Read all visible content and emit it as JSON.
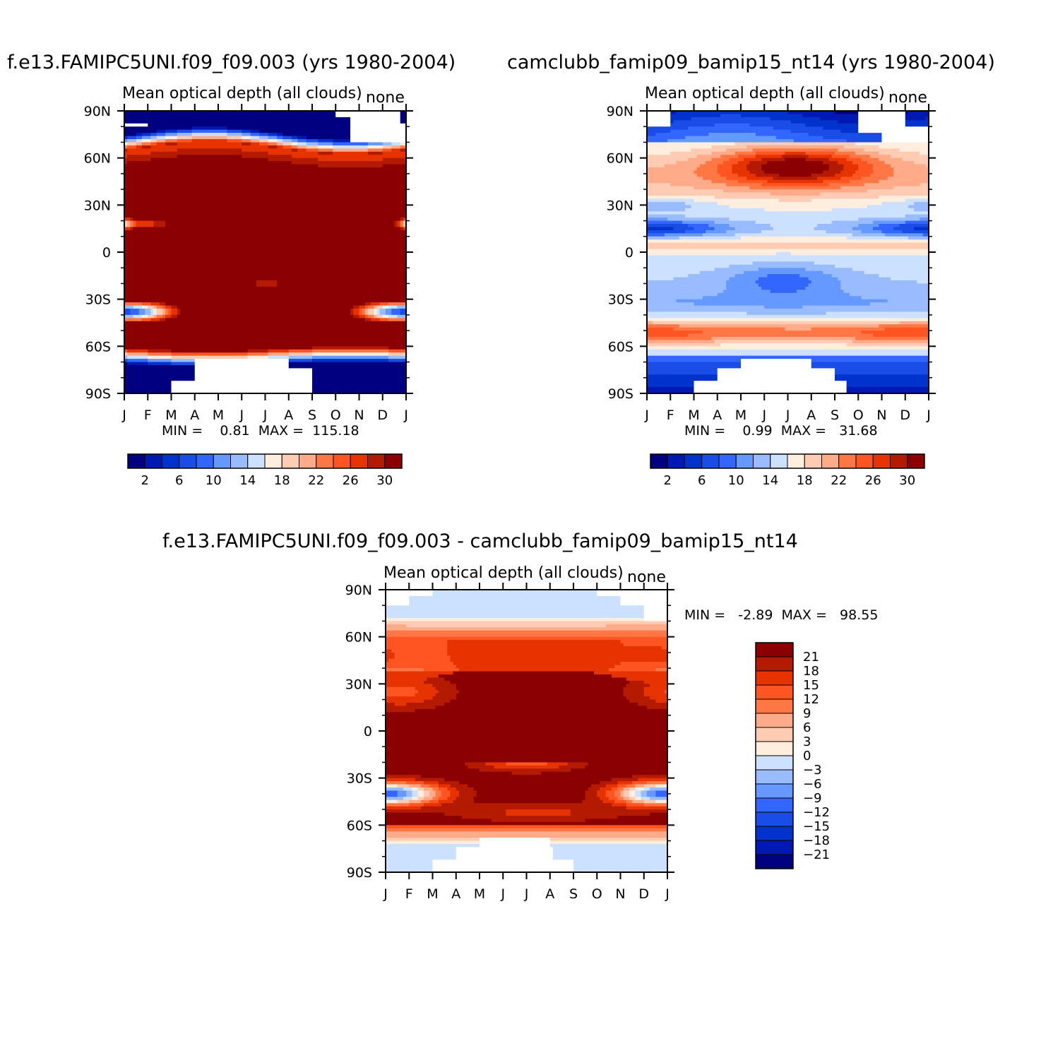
{
  "colors": {
    "neg": [
      "#000080",
      "#0019b3",
      "#0033cc",
      "#1a4de6",
      "#3366ff",
      "#6699ff",
      "#99bbff",
      "#cce0ff"
    ],
    "pos": [
      "#ffeedd",
      "#ffccb3",
      "#ffaa88",
      "#ff7744",
      "#ff5522",
      "#e63300",
      "#b31a00",
      "#8b0000"
    ],
    "missing": "#ffffff"
  },
  "months": [
    "J",
    "F",
    "M",
    "A",
    "M",
    "J",
    "J",
    "A",
    "S",
    "O",
    "N",
    "D",
    "J"
  ],
  "lat_labels": [
    "90N",
    "60N",
    "30N",
    "0",
    "30S",
    "60S",
    "90S"
  ],
  "panels": [
    {
      "id": "left",
      "title": "f.e13.FAMIPC5UNI.f09_f09.003 (yrs 1980-2004)",
      "subtitle": "Mean optical depth (all clouds)",
      "corner": "none",
      "minmax": "MIN =    0.81  MAX =  115.18"
    },
    {
      "id": "right",
      "title": "camclubb_famip09_bamip15_nt14 (yrs 1980-2004)",
      "subtitle": "Mean optical depth (all clouds)",
      "corner": "none",
      "minmax": "MIN =    0.99  MAX =   31.68"
    },
    {
      "id": "diff",
      "title": "f.e13.FAMIPC5UNI.f09_f09.003 - camclubb_famip09_bamip15_nt14",
      "subtitle": "Mean optical depth (all clouds)",
      "corner": "none",
      "minmax": "MIN =   -2.89  MAX =   98.55"
    }
  ],
  "colorbar_h": {
    "labels": [
      "2",
      "6",
      "10",
      "14",
      "18",
      "22",
      "26",
      "30"
    ]
  },
  "colorbar_v": {
    "labels": [
      "21",
      "18",
      "15",
      "12",
      "9",
      "6",
      "3",
      "0",
      "-3",
      "-6",
      "-9",
      "-12",
      "-15",
      "-18",
      "-21"
    ]
  },
  "chart_data": [
    {
      "type": "heatmap",
      "title": "f.e13.FAMIPC5UNI.f09_f09.003 (yrs 1980-2004)",
      "subtitle": "Mean optical depth (all clouds)",
      "x": [
        "J",
        "F",
        "M",
        "A",
        "M",
        "J",
        "J",
        "A",
        "S",
        "O",
        "N",
        "D",
        "J"
      ],
      "y": [
        "90N",
        "60N",
        "30N",
        "0",
        "30S",
        "60S",
        "90S"
      ],
      "ylim": [
        -90,
        90
      ],
      "levels": [
        2,
        4,
        6,
        8,
        10,
        12,
        14,
        16,
        18,
        20,
        22,
        24,
        26,
        28,
        30
      ],
      "min": 0.81,
      "max": 115.18,
      "features": [
        {
          "desc": "values above 30 across 60S-65N",
          "lat_range": [
            -62,
            65
          ],
          "value": 31
        },
        {
          "desc": "local minimum near 18N Jan-Feb and Dec",
          "lat": 18,
          "value": 27
        },
        {
          "desc": "local minimum near 20S Jun-Aug",
          "lat": -20,
          "value": 28
        },
        {
          "desc": "local minima near 38S in Jan-Mar and Oct-Dec",
          "lat": -38,
          "value": 20
        },
        {
          "desc": "high latitude values below 4 poleward of 70",
          "lat_range": [
            70,
            90
          ],
          "value": 3
        },
        {
          "desc": "missing data polar night",
          "region": "Arctic May-Sep absent only Nov-Feb; Antarctic Apr-Sep"
        }
      ]
    },
    {
      "type": "heatmap",
      "title": "camclubb_famip09_bamip15_nt14 (yrs 1980-2004)",
      "subtitle": "Mean optical depth (all clouds)",
      "x": [
        "J",
        "F",
        "M",
        "A",
        "M",
        "J",
        "J",
        "A",
        "S",
        "O",
        "N",
        "D",
        "J"
      ],
      "y": [
        "90N",
        "60N",
        "30N",
        "0",
        "30S",
        "60S",
        "90S"
      ],
      "ylim": [
        -90,
        90
      ],
      "levels": [
        2,
        4,
        6,
        8,
        10,
        12,
        14,
        16,
        18,
        20,
        22,
        24,
        26,
        28,
        30
      ],
      "min": 0.99,
      "max": 31.68,
      "features": [
        {
          "desc": "maximum near 55N in Jun-Jul",
          "lat": 55,
          "value": 31
        },
        {
          "desc": "storm track band near 50S",
          "lat": -52,
          "value": 23
        },
        {
          "desc": "minimum near 15S-25S in May-Jul",
          "lat": -15,
          "value": 10
        },
        {
          "desc": "tropical band near 5N",
          "lat": 5,
          "value": 20
        }
      ]
    },
    {
      "type": "heatmap",
      "title": "f.e13.FAMIPC5UNI.f09_f09.003 - camclubb_famip09_bamip15_nt14",
      "subtitle": "Mean optical depth (all clouds)",
      "x": [
        "J",
        "F",
        "M",
        "A",
        "M",
        "J",
        "J",
        "A",
        "S",
        "O",
        "N",
        "D",
        "J"
      ],
      "y": [
        "90N",
        "60N",
        "30N",
        "0",
        "30S",
        "60S",
        "90S"
      ],
      "ylim": [
        -90,
        90
      ],
      "levels": [
        -21,
        -18,
        -15,
        -12,
        -9,
        -6,
        -3,
        0,
        3,
        6,
        9,
        12,
        15,
        18,
        21
      ],
      "min": -2.89,
      "max": 98.55,
      "features": [
        {
          "desc": "difference above 21 across tropics",
          "lat_range": [
            -25,
            40
          ],
          "value": 22
        },
        {
          "desc": "weak negative differences poleward of 70",
          "lat_range": [
            70,
            90
          ],
          "value": -1
        }
      ]
    }
  ]
}
